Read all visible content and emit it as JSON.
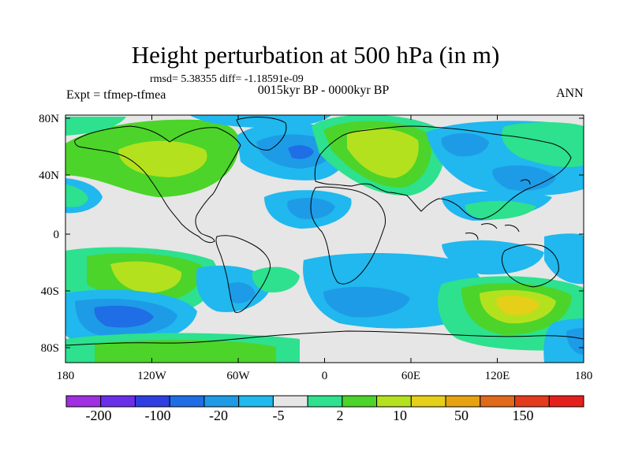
{
  "title": "Height perturbation at 500 hPa (in m)",
  "stats_text": "rmsd= 5.38355 diff= -1.18591e-09",
  "subtitle": "0015kyr BP - 0000kyr BP",
  "experiment_label": "Expt = tfmep-tfmea",
  "season_label": "ANN",
  "map": {
    "background_color": "#e6e6e6",
    "lat_ticks": [
      "80N",
      "40N",
      "0",
      "40S",
      "80S"
    ],
    "lon_ticks": [
      "180",
      "120W",
      "60W",
      "0",
      "60E",
      "120E",
      "180"
    ]
  },
  "colorbar": {
    "colors": [
      "#9f2fe0",
      "#6a2fe8",
      "#2f3ee0",
      "#1f6ee6",
      "#1e9be6",
      "#20b8ee",
      "#e6e6e6",
      "#2de18e",
      "#4cd42a",
      "#b4e11e",
      "#e6cf18",
      "#e6a210",
      "#e06a1a",
      "#e33b1b",
      "#e4201d"
    ],
    "labels": [
      "-200",
      "-100",
      "-20",
      "-5",
      "2",
      "10",
      "50",
      "150"
    ]
  }
}
